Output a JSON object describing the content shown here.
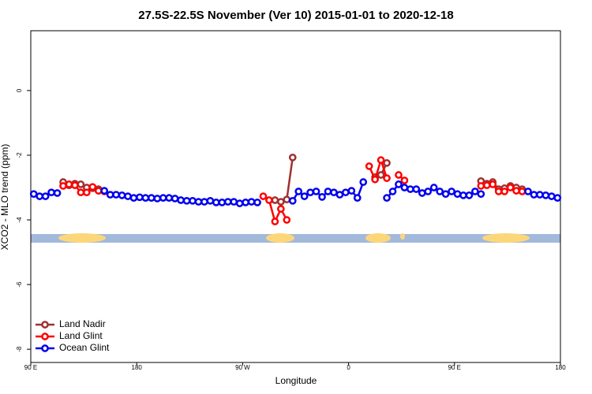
{
  "chart_data": {
    "type": "line",
    "title": "27.5S-22.5S November (Ver 10)   2015-01-01 to 2020-12-18",
    "xlabel": "Longitude",
    "ylabel": "XCO2 - MLO trend (ppm)",
    "xlim": [
      90,
      540
    ],
    "ylim": [
      -8.41,
      1.85
    ],
    "xticks": [
      {
        "value": 90,
        "label": "90 E"
      },
      {
        "value": 180,
        "label": "180"
      },
      {
        "value": 270,
        "label": "90 W"
      },
      {
        "value": 360,
        "label": "0"
      },
      {
        "value": 450,
        "label": "90 E"
      },
      {
        "value": 540,
        "label": "180"
      }
    ],
    "yticks": [
      -8,
      -6,
      -4,
      -2,
      0
    ],
    "legend": "bottom-left",
    "series": [
      {
        "name": "Land Nadir",
        "color": "#a03030",
        "x": [
          117.5,
          122.5,
          127.5,
          132.5,
          137.5,
          142.5,
          147.5,
          220,
          297.5,
          302.5,
          307.5,
          312.5,
          350,
          382.5,
          387.5,
          392.5,
          430,
          472.5,
          477.5,
          482.5,
          487.5,
          492.5,
          497.5,
          502.5,
          507.5
        ],
        "values": [
          -2.83,
          -2.93,
          -2.88,
          -2.9,
          -3.0,
          -3.02,
          -3.05,
          null,
          -3.39,
          -3.44,
          -3.37,
          -2.07,
          null,
          -2.68,
          -2.61,
          -2.24,
          null,
          -2.8,
          -2.88,
          -2.83,
          -3.05,
          -3.02,
          -2.95,
          -3.0,
          -3.05
        ]
      },
      {
        "name": "Land Glint",
        "color": "#ff0000",
        "x": [
          117.5,
          122.5,
          127.5,
          132.5,
          137.5,
          142.5,
          147.5,
          152.5,
          220,
          287.5,
          292.5,
          297.5,
          302.5,
          307.5,
          340,
          377.5,
          382.5,
          387.5,
          392.5,
          397.5,
          402.5,
          407.5,
          440,
          472.5,
          477.5,
          482.5,
          487.5,
          492.5,
          497.5,
          502.5,
          507.5
        ],
        "values": [
          -2.95,
          -2.9,
          -2.93,
          -3.15,
          -3.15,
          -2.98,
          -3.1,
          -3.12,
          null,
          -3.27,
          -3.39,
          -4.05,
          -3.66,
          -4.0,
          null,
          -2.34,
          -2.75,
          -2.15,
          -2.71,
          null,
          -2.61,
          -2.78,
          null,
          -2.95,
          -2.93,
          -2.9,
          -3.12,
          -3.12,
          -3.0,
          -3.1,
          -3.12
        ]
      },
      {
        "name": "Ocean Glint",
        "color": "#0000ee",
        "x": [
          92.5,
          97.5,
          102.5,
          107.5,
          112.5,
          130,
          152.5,
          157.5,
          162.5,
          167.5,
          172.5,
          177.5,
          182.5,
          187.5,
          192.5,
          197.5,
          202.5,
          207.5,
          212.5,
          217.5,
          222.5,
          227.5,
          232.5,
          237.5,
          242.5,
          247.5,
          252.5,
          257.5,
          262.5,
          267.5,
          272.5,
          277.5,
          282.5,
          297.5,
          312.5,
          317.5,
          322.5,
          327.5,
          332.5,
          337.5,
          342.5,
          347.5,
          352.5,
          357.5,
          362.5,
          367.5,
          372.5,
          382.5,
          392.5,
          397.5,
          402.5,
          407.5,
          412.5,
          417.5,
          422.5,
          427.5,
          432.5,
          437.5,
          442.5,
          447.5,
          452.5,
          457.5,
          462.5,
          467.5,
          472.5,
          492.5,
          512.5,
          517.5,
          522.5,
          527.5,
          532.5,
          537.5
        ],
        "values": [
          -3.2,
          -3.27,
          -3.27,
          -3.15,
          -3.17,
          null,
          -3.1,
          -3.22,
          -3.22,
          -3.24,
          -3.27,
          -3.32,
          -3.3,
          -3.32,
          -3.32,
          -3.34,
          -3.32,
          -3.32,
          -3.34,
          -3.39,
          -3.41,
          -3.41,
          -3.44,
          -3.44,
          -3.41,
          -3.46,
          -3.46,
          -3.44,
          -3.44,
          -3.49,
          -3.46,
          -3.44,
          -3.46,
          null,
          -3.41,
          -3.12,
          -3.27,
          -3.15,
          -3.12,
          -3.29,
          -3.12,
          -3.15,
          -3.22,
          -3.15,
          -3.1,
          -3.32,
          -2.83,
          null,
          -3.32,
          -3.12,
          -2.9,
          -3.0,
          -3.05,
          -3.05,
          -3.17,
          -3.12,
          -3.0,
          -3.12,
          -3.2,
          -3.12,
          -3.2,
          -3.24,
          -3.24,
          -3.12,
          -3.2,
          null,
          -3.12,
          -3.22,
          -3.22,
          -3.24,
          -3.27,
          -3.32
        ]
      }
    ]
  }
}
